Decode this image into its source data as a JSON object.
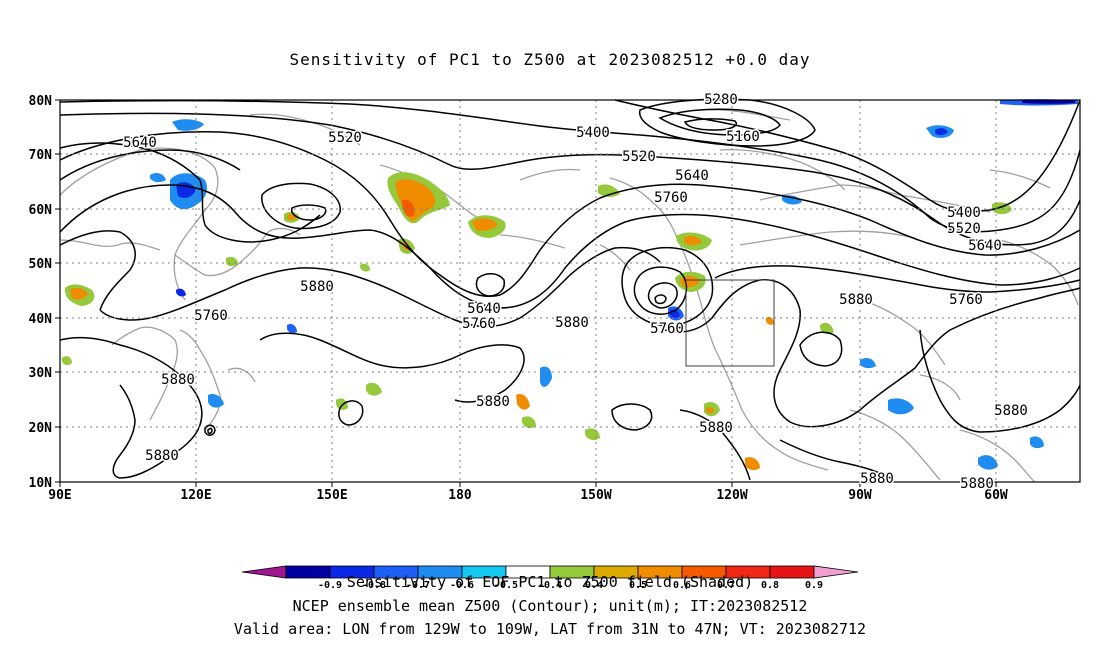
{
  "title": "Sensitivity of PC1 to Z500 at 2023082512 +0.0 day",
  "lat_ticks": [
    "80N",
    "70N",
    "60N",
    "50N",
    "40N",
    "30N",
    "20N",
    "10N"
  ],
  "lon_ticks": [
    "90E",
    "120E",
    "150E",
    "180",
    "150W",
    "120W",
    "90W",
    "60W"
  ],
  "contour_labels": [
    {
      "text": "5280"
    },
    {
      "text": "5160"
    },
    {
      "text": "5400"
    },
    {
      "text": "5520"
    },
    {
      "text": "5640"
    },
    {
      "text": "5760"
    },
    {
      "text": "5520"
    },
    {
      "text": "5640"
    },
    {
      "text": "5400"
    },
    {
      "text": "5520"
    },
    {
      "text": "5640"
    },
    {
      "text": "5760"
    },
    {
      "text": "5880"
    },
    {
      "text": "5880"
    },
    {
      "text": "5760"
    },
    {
      "text": "5640"
    },
    {
      "text": "5760"
    },
    {
      "text": "5880"
    },
    {
      "text": "5760"
    },
    {
      "text": "5880"
    },
    {
      "text": "5880"
    },
    {
      "text": "5880"
    },
    {
      "text": "5880"
    },
    {
      "text": "5880"
    },
    {
      "text": "5880"
    },
    {
      "text": "5880"
    }
  ],
  "colorbar": {
    "colors": [
      "#a01590",
      "#0000a0",
      "#0a28e6",
      "#1e5ff5",
      "#1e8cf0",
      "#14c8f0",
      "#ffffff",
      "#96c83c",
      "#dcaa00",
      "#f08c00",
      "#f55a00",
      "#f02814",
      "#e61414",
      "#f0a0d0"
    ],
    "labels": [
      "-0.9",
      "-0.8",
      "-0.7",
      "-0.6",
      "-0.5",
      "-0.4",
      "0.4",
      "0.5",
      "0.6",
      "0.7",
      "0.8",
      "0.9"
    ],
    "label": "Sensitivity of EOF PC1 to Z500 field (Shaded)"
  },
  "caption_line1": "NCEP ensemble mean Z500 (Contour); unit(m); IT:2023082512",
  "caption_line2": "Valid area: LON from 129W to 109W, LAT from 31N to 47N; VT: 2023082712",
  "colors": {
    "contour": "#000000",
    "coast": "#a0a0a0",
    "grid": "#808080"
  }
}
